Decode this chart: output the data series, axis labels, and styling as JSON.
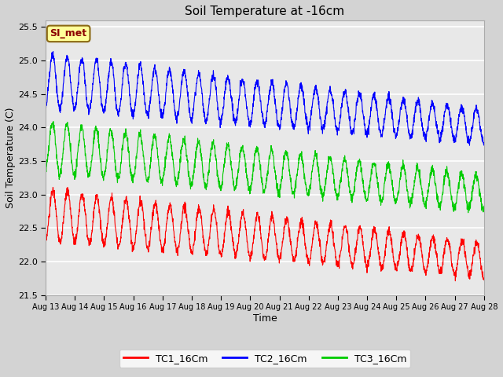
{
  "title": "Soil Temperature at -16cm",
  "xlabel": "Time",
  "ylabel": "Soil Temperature (C)",
  "ylim": [
    21.5,
    25.6
  ],
  "legend_label": "SI_met",
  "legend_bg": "#ffff99",
  "legend_border": "#8B6914",
  "tc1_color": "#ff0000",
  "tc2_color": "#0000ff",
  "tc3_color": "#00cc00",
  "tick_labels": [
    "Aug 13",
    "Aug 14",
    "Aug 15",
    "Aug 16",
    "Aug 17",
    "Aug 18",
    "Aug 19",
    "Aug 20",
    "Aug 21",
    "Aug 22",
    "Aug 23",
    "Aug 24",
    "Aug 25",
    "Aug 26",
    "Aug 27",
    "Aug 28"
  ],
  "yticks": [
    21.5,
    22.0,
    22.5,
    23.0,
    23.5,
    24.0,
    24.5,
    25.0,
    25.5
  ],
  "tc1_base": 22.7,
  "tc2_base": 24.7,
  "tc3_base": 23.7,
  "tc1_amp": 0.38,
  "tc2_amp": 0.38,
  "tc3_amp": 0.38,
  "trend": -0.045,
  "period": 0.5,
  "n_days": 15
}
